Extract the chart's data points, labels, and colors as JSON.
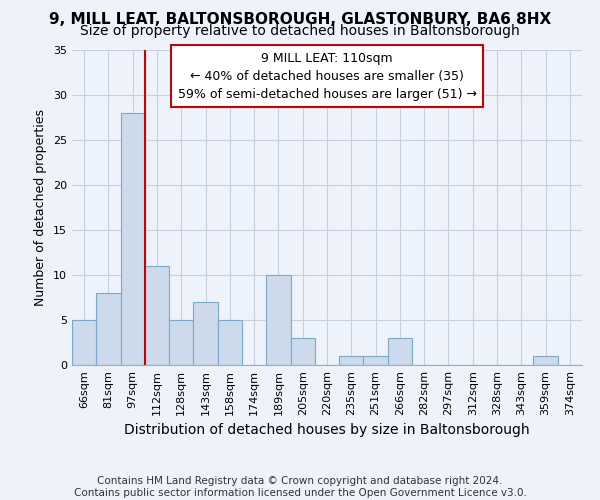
{
  "title": "9, MILL LEAT, BALTONSBOROUGH, GLASTONBURY, BA6 8HX",
  "subtitle": "Size of property relative to detached houses in Baltonsborough",
  "xlabel": "Distribution of detached houses by size in Baltonsborough",
  "ylabel": "Number of detached properties",
  "footer_line1": "Contains HM Land Registry data © Crown copyright and database right 2024.",
  "footer_line2": "Contains public sector information licensed under the Open Government Licence v3.0.",
  "categories": [
    "66sqm",
    "81sqm",
    "97sqm",
    "112sqm",
    "128sqm",
    "143sqm",
    "158sqm",
    "174sqm",
    "189sqm",
    "205sqm",
    "220sqm",
    "235sqm",
    "251sqm",
    "266sqm",
    "282sqm",
    "297sqm",
    "312sqm",
    "328sqm",
    "343sqm",
    "359sqm",
    "374sqm"
  ],
  "values": [
    5,
    8,
    28,
    11,
    5,
    7,
    5,
    0,
    10,
    3,
    0,
    1,
    1,
    3,
    0,
    0,
    0,
    0,
    0,
    1,
    0
  ],
  "bar_color": "#ccdaeb",
  "bar_edge_color": "#7aaacb",
  "vline_color": "#cc0000",
  "vline_index": 3,
  "annotation_text": "9 MILL LEAT: 110sqm\n← 40% of detached houses are smaller (35)\n59% of semi-detached houses are larger (51) →",
  "annotation_box_facecolor": "white",
  "annotation_box_edgecolor": "#cc0000",
  "ylim": [
    0,
    35
  ],
  "yticks": [
    0,
    5,
    10,
    15,
    20,
    25,
    30,
    35
  ],
  "background_color": "#eef2fb",
  "grid_color": "#c8d0e0",
  "title_fontsize": 11,
  "subtitle_fontsize": 10,
  "xlabel_fontsize": 10,
  "ylabel_fontsize": 9,
  "tick_fontsize": 8,
  "annotation_fontsize": 9,
  "footer_fontsize": 7.5
}
